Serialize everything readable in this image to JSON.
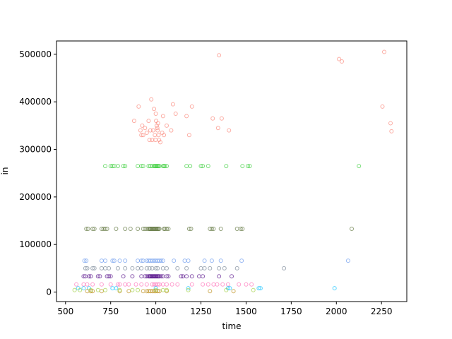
{
  "chart_data": {
    "type": "scatter",
    "xlabel": "time",
    "ylabel": "in",
    "xlim": [
      450,
      2390
    ],
    "ylim": [
      -20000,
      528000
    ],
    "xticks": [
      500,
      750,
      1000,
      1250,
      1500,
      1750,
      2000,
      2250
    ],
    "yticks": [
      0,
      100000,
      200000,
      300000,
      400000,
      500000
    ],
    "grid": false,
    "legend": false,
    "series": [
      {
        "color": "#fa8072",
        "points": [
          [
            880,
            360000
          ],
          [
            905,
            390000
          ],
          [
            915,
            340000
          ],
          [
            920,
            330000
          ],
          [
            925,
            350000
          ],
          [
            930,
            330000
          ],
          [
            940,
            345000
          ],
          [
            950,
            335000
          ],
          [
            960,
            360000
          ],
          [
            965,
            320000
          ],
          [
            970,
            340000
          ],
          [
            975,
            405000
          ],
          [
            980,
            320000
          ],
          [
            985,
            340000
          ],
          [
            990,
            385000
          ],
          [
            995,
            330000
          ],
          [
            998,
            320000
          ],
          [
            1000,
            375000
          ],
          [
            1002,
            360000
          ],
          [
            1005,
            350000
          ],
          [
            1008,
            345000
          ],
          [
            1010,
            340000
          ],
          [
            1012,
            355000
          ],
          [
            1015,
            330000
          ],
          [
            1018,
            320000
          ],
          [
            1025,
            315000
          ],
          [
            1035,
            335000
          ],
          [
            1040,
            370000
          ],
          [
            1045,
            330000
          ],
          [
            1060,
            350000
          ],
          [
            1085,
            340000
          ],
          [
            1095,
            395000
          ],
          [
            1110,
            375000
          ],
          [
            1170,
            370000
          ],
          [
            1185,
            330000
          ],
          [
            1200,
            390000
          ],
          [
            1315,
            365000
          ],
          [
            1345,
            345000
          ],
          [
            1350,
            498000
          ],
          [
            1365,
            365000
          ],
          [
            1405,
            340000
          ],
          [
            2015,
            490000
          ],
          [
            2030,
            485000
          ],
          [
            2255,
            390000
          ],
          [
            2265,
            505000
          ],
          [
            2300,
            355000
          ],
          [
            2305,
            338000
          ]
        ]
      },
      {
        "color": "#32cd32",
        "points": [
          [
            720,
            265000
          ],
          [
            750,
            265000
          ],
          [
            760,
            265000
          ],
          [
            770,
            265000
          ],
          [
            790,
            265000
          ],
          [
            820,
            265000
          ],
          [
            830,
            265000
          ],
          [
            900,
            265000
          ],
          [
            920,
            265000
          ],
          [
            930,
            265000
          ],
          [
            960,
            265000
          ],
          [
            970,
            265000
          ],
          [
            980,
            265000
          ],
          [
            990,
            265000
          ],
          [
            995,
            265000
          ],
          [
            1000,
            265000
          ],
          [
            1005,
            265000
          ],
          [
            1010,
            265000
          ],
          [
            1015,
            265000
          ],
          [
            1020,
            265000
          ],
          [
            1040,
            265000
          ],
          [
            1045,
            265000
          ],
          [
            1050,
            265000
          ],
          [
            1060,
            265000
          ],
          [
            1170,
            265000
          ],
          [
            1190,
            265000
          ],
          [
            1250,
            265000
          ],
          [
            1260,
            265000
          ],
          [
            1290,
            265000
          ],
          [
            1390,
            265000
          ],
          [
            1480,
            265000
          ],
          [
            1510,
            265000
          ],
          [
            1520,
            265000
          ],
          [
            2125,
            265000
          ]
        ]
      },
      {
        "color": "#556b2f",
        "points": [
          [
            615,
            133000
          ],
          [
            625,
            133000
          ],
          [
            650,
            133000
          ],
          [
            660,
            133000
          ],
          [
            700,
            133000
          ],
          [
            710,
            133000
          ],
          [
            720,
            133000
          ],
          [
            730,
            133000
          ],
          [
            780,
            133000
          ],
          [
            830,
            133000
          ],
          [
            860,
            133000
          ],
          [
            900,
            133000
          ],
          [
            930,
            133000
          ],
          [
            940,
            133000
          ],
          [
            950,
            133000
          ],
          [
            960,
            133000
          ],
          [
            965,
            133000
          ],
          [
            970,
            133000
          ],
          [
            975,
            133000
          ],
          [
            980,
            133000
          ],
          [
            985,
            133000
          ],
          [
            990,
            133000
          ],
          [
            995,
            133000
          ],
          [
            1000,
            133000
          ],
          [
            1005,
            133000
          ],
          [
            1010,
            133000
          ],
          [
            1015,
            133000
          ],
          [
            1020,
            133000
          ],
          [
            1045,
            133000
          ],
          [
            1050,
            133000
          ],
          [
            1060,
            133000
          ],
          [
            1070,
            133000
          ],
          [
            1185,
            133000
          ],
          [
            1195,
            133000
          ],
          [
            1300,
            133000
          ],
          [
            1310,
            133000
          ],
          [
            1320,
            133000
          ],
          [
            1360,
            133000
          ],
          [
            1450,
            133000
          ],
          [
            1470,
            133000
          ],
          [
            1480,
            133000
          ],
          [
            2085,
            133000
          ]
        ]
      },
      {
        "color": "#6495ed",
        "points": [
          [
            605,
            66000
          ],
          [
            615,
            66000
          ],
          [
            700,
            66000
          ],
          [
            720,
            66000
          ],
          [
            760,
            66000
          ],
          [
            770,
            66000
          ],
          [
            800,
            66000
          ],
          [
            830,
            66000
          ],
          [
            900,
            66000
          ],
          [
            920,
            66000
          ],
          [
            930,
            66000
          ],
          [
            950,
            66000
          ],
          [
            960,
            66000
          ],
          [
            970,
            66000
          ],
          [
            980,
            66000
          ],
          [
            990,
            66000
          ],
          [
            1000,
            66000
          ],
          [
            1010,
            66000
          ],
          [
            1020,
            66000
          ],
          [
            1030,
            66000
          ],
          [
            1040,
            66000
          ],
          [
            1100,
            66000
          ],
          [
            1160,
            66000
          ],
          [
            1180,
            66000
          ],
          [
            1270,
            66000
          ],
          [
            1310,
            66000
          ],
          [
            1360,
            66000
          ],
          [
            1475,
            66000
          ],
          [
            2065,
            66000
          ]
        ]
      },
      {
        "color": "#708090",
        "points": [
          [
            610,
            50000
          ],
          [
            620,
            50000
          ],
          [
            650,
            50000
          ],
          [
            660,
            50000
          ],
          [
            700,
            50000
          ],
          [
            720,
            50000
          ],
          [
            740,
            50000
          ],
          [
            790,
            50000
          ],
          [
            830,
            50000
          ],
          [
            870,
            50000
          ],
          [
            900,
            50000
          ],
          [
            920,
            50000
          ],
          [
            950,
            50000
          ],
          [
            965,
            50000
          ],
          [
            980,
            50000
          ],
          [
            1000,
            50000
          ],
          [
            1010,
            50000
          ],
          [
            1040,
            50000
          ],
          [
            1060,
            50000
          ],
          [
            1120,
            50000
          ],
          [
            1170,
            50000
          ],
          [
            1250,
            50000
          ],
          [
            1270,
            50000
          ],
          [
            1300,
            50000
          ],
          [
            1350,
            50000
          ],
          [
            1380,
            50000
          ],
          [
            1450,
            50000
          ],
          [
            1710,
            50000
          ]
        ]
      },
      {
        "color": "#4b0082",
        "points": [
          [
            600,
            33000
          ],
          [
            610,
            33000
          ],
          [
            630,
            33000
          ],
          [
            640,
            33000
          ],
          [
            680,
            33000
          ],
          [
            690,
            33000
          ],
          [
            730,
            33000
          ],
          [
            740,
            33000
          ],
          [
            750,
            33000
          ],
          [
            820,
            33000
          ],
          [
            870,
            33000
          ],
          [
            920,
            33000
          ],
          [
            940,
            33000
          ],
          [
            950,
            33000
          ],
          [
            960,
            33000
          ],
          [
            965,
            33000
          ],
          [
            970,
            33000
          ],
          [
            975,
            33000
          ],
          [
            980,
            33000
          ],
          [
            985,
            33000
          ],
          [
            990,
            33000
          ],
          [
            995,
            33000
          ],
          [
            1000,
            33000
          ],
          [
            1005,
            33000
          ],
          [
            1010,
            33000
          ],
          [
            1015,
            33000
          ],
          [
            1020,
            33000
          ],
          [
            1030,
            33000
          ],
          [
            1040,
            33000
          ],
          [
            1060,
            33000
          ],
          [
            1070,
            33000
          ],
          [
            1140,
            33000
          ],
          [
            1150,
            33000
          ],
          [
            1170,
            33000
          ],
          [
            1200,
            33000
          ],
          [
            1240,
            33000
          ],
          [
            1260,
            33000
          ],
          [
            1350,
            33000
          ],
          [
            1420,
            33000
          ]
        ]
      },
      {
        "color": "#ff69b4",
        "points": [
          [
            560,
            16000
          ],
          [
            600,
            16000
          ],
          [
            620,
            16000
          ],
          [
            650,
            16000
          ],
          [
            700,
            16000
          ],
          [
            750,
            16000
          ],
          [
            790,
            16000
          ],
          [
            800,
            16000
          ],
          [
            830,
            16000
          ],
          [
            850,
            16000
          ],
          [
            890,
            16000
          ],
          [
            920,
            16000
          ],
          [
            950,
            16000
          ],
          [
            980,
            16000
          ],
          [
            990,
            16000
          ],
          [
            1000,
            16000
          ],
          [
            1010,
            16000
          ],
          [
            1020,
            16000
          ],
          [
            1040,
            16000
          ],
          [
            1060,
            16000
          ],
          [
            1090,
            16000
          ],
          [
            1120,
            16000
          ],
          [
            1200,
            16000
          ],
          [
            1260,
            16000
          ],
          [
            1290,
            16000
          ],
          [
            1320,
            16000
          ],
          [
            1340,
            16000
          ],
          [
            1370,
            16000
          ],
          [
            1400,
            16000
          ],
          [
            1460,
            16000
          ],
          [
            1500,
            16000
          ],
          [
            1530,
            16000
          ]
        ]
      },
      {
        "color": "#00bfff",
        "points": [
          [
            570,
            8000
          ],
          [
            600,
            8000
          ],
          [
            630,
            8000
          ],
          [
            760,
            8000
          ],
          [
            780,
            8000
          ],
          [
            1000,
            8000
          ],
          [
            1180,
            8000
          ],
          [
            1400,
            8000
          ],
          [
            1410,
            8000
          ],
          [
            1570,
            8000
          ],
          [
            1580,
            8000
          ],
          [
            1990,
            8000
          ]
        ]
      },
      {
        "color": "#b8860b",
        "points": [
          [
            620,
            2000
          ],
          [
            640,
            2000
          ],
          [
            650,
            2000
          ],
          [
            700,
            2000
          ],
          [
            800,
            2000
          ],
          [
            850,
            2000
          ],
          [
            930,
            2000
          ],
          [
            950,
            2000
          ],
          [
            960,
            2000
          ],
          [
            970,
            2000
          ],
          [
            980,
            2000
          ],
          [
            990,
            2000
          ],
          [
            1000,
            2000
          ],
          [
            1010,
            2000
          ],
          [
            1020,
            2000
          ],
          [
            1060,
            2000
          ],
          [
            1300,
            2000
          ],
          [
            1430,
            2000
          ]
        ]
      },
      {
        "color": "#9acd32",
        "points": [
          [
            550,
            4000
          ],
          [
            580,
            4000
          ],
          [
            640,
            4000
          ],
          [
            680,
            4000
          ],
          [
            720,
            4000
          ],
          [
            800,
            4000
          ],
          [
            870,
            4000
          ],
          [
            900,
            4000
          ],
          [
            1000,
            4000
          ],
          [
            1040,
            4000
          ],
          [
            1060,
            4000
          ],
          [
            1180,
            4000
          ],
          [
            1390,
            4000
          ],
          [
            1540,
            4000
          ]
        ]
      }
    ]
  }
}
